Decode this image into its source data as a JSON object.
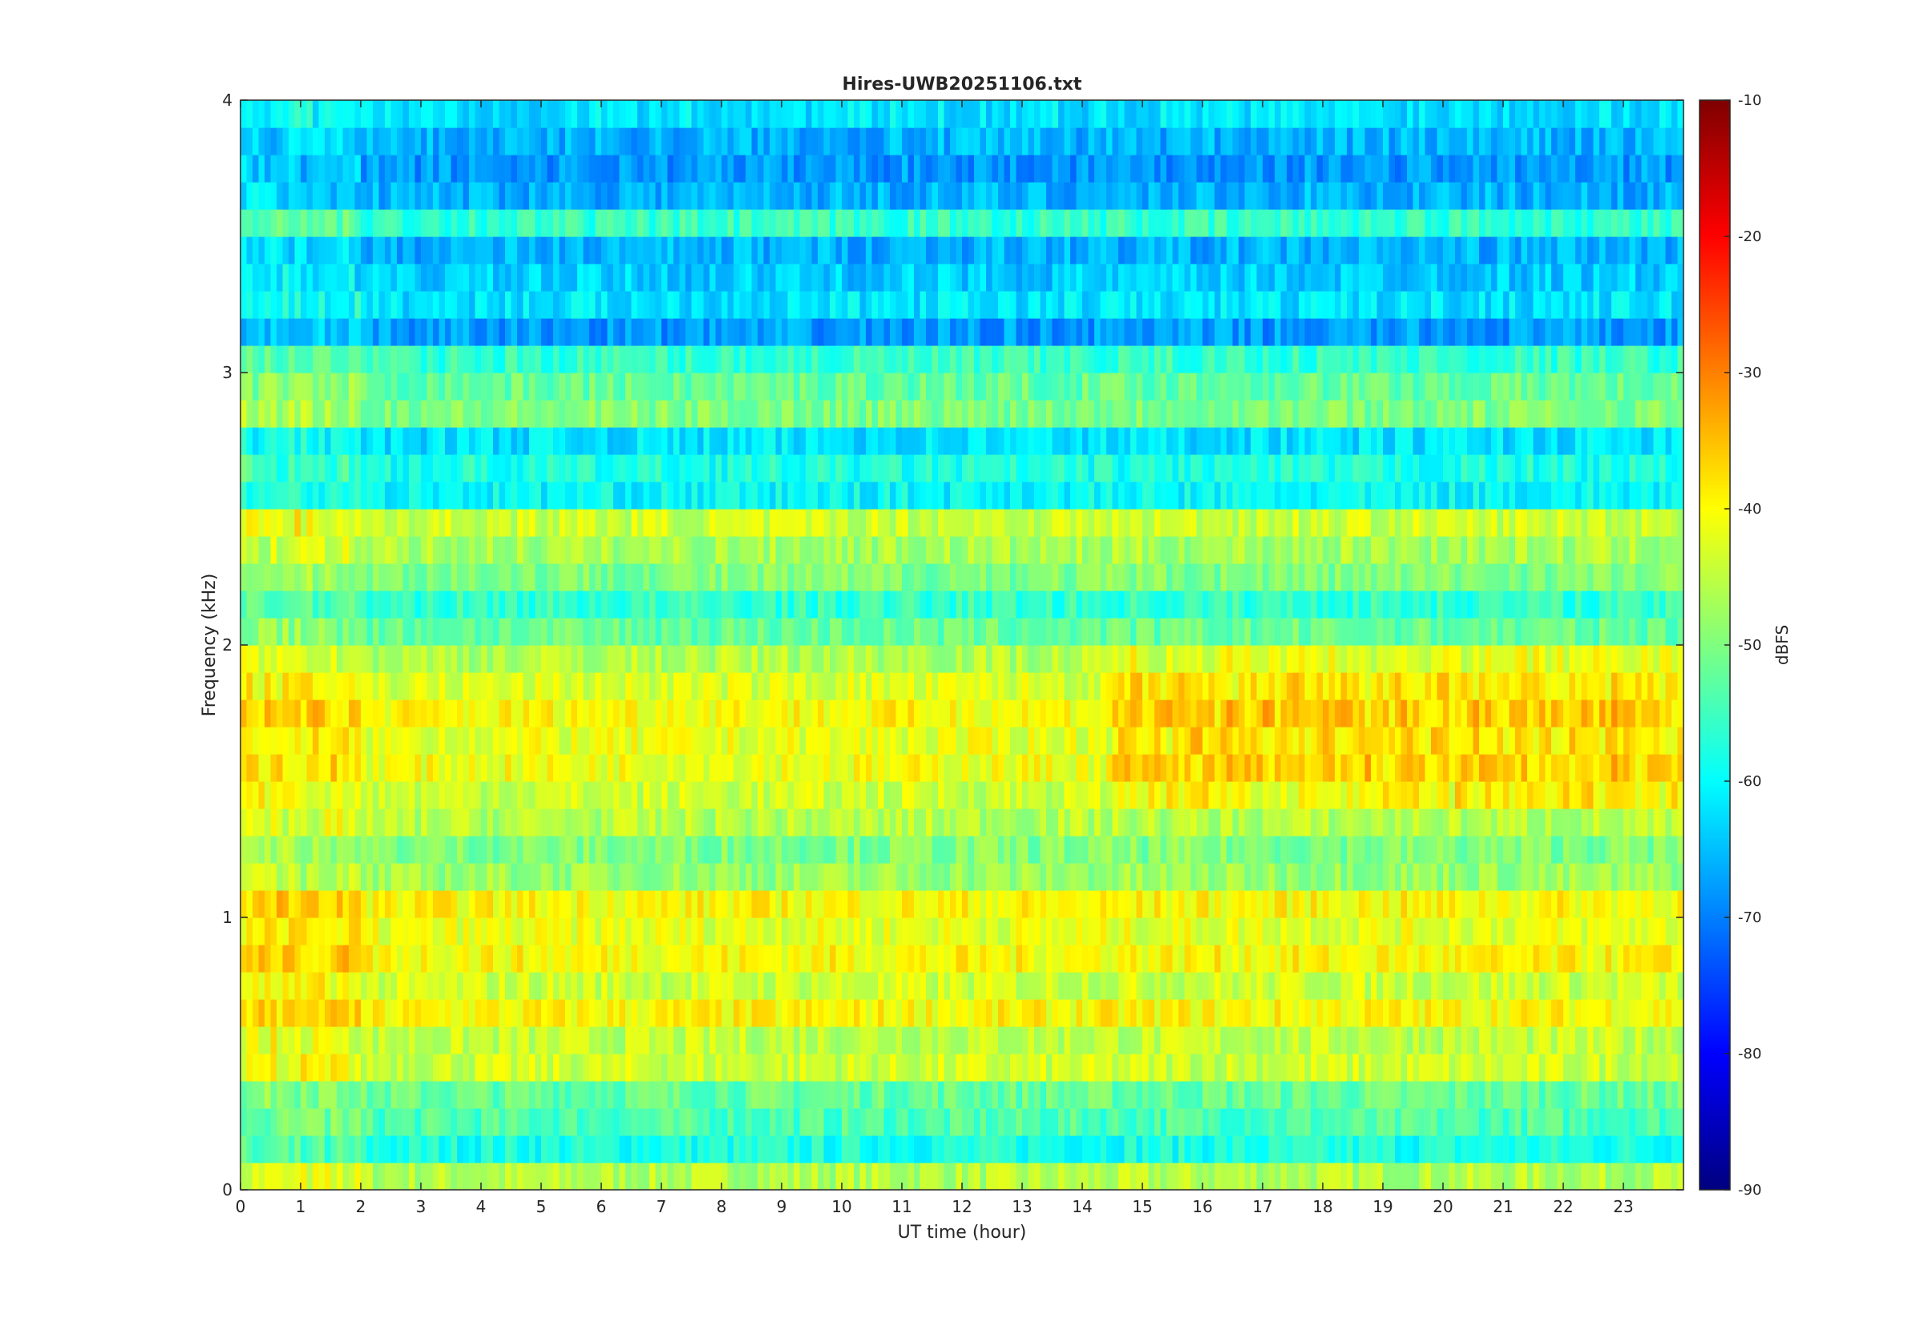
{
  "chart_data": {
    "type": "heatmap",
    "title": "Hires-UWB20251106.txt",
    "xlabel": "UT time (hour)",
    "ylabel": "Frequency (kHz)",
    "colorbar_label": "dBFS",
    "xlim": [
      0,
      24
    ],
    "ylim": [
      0,
      4
    ],
    "clim": [
      -90,
      -10
    ],
    "colormap": "jet",
    "grid": false,
    "legend": "none",
    "x_ticks": [
      0,
      1,
      2,
      3,
      4,
      5,
      6,
      7,
      8,
      9,
      10,
      11,
      12,
      13,
      14,
      15,
      16,
      17,
      18,
      19,
      20,
      21,
      22,
      23
    ],
    "y_ticks": [
      0,
      1,
      2,
      3,
      4
    ],
    "colorbar_ticks": [
      -90,
      -80,
      -70,
      -60,
      -50,
      -40,
      -30,
      -20,
      -10
    ],
    "frequency_bands_khz": [
      0.05,
      0.15,
      0.25,
      0.35,
      0.45,
      0.55,
      0.65,
      0.75,
      0.85,
      0.95,
      1.05,
      1.15,
      1.25,
      1.35,
      1.45,
      1.55,
      1.65,
      1.75,
      1.85,
      1.95,
      2.05,
      2.15,
      2.25,
      2.35,
      2.45,
      2.55,
      2.65,
      2.75,
      2.85,
      2.95,
      3.05,
      3.15,
      3.25,
      3.35,
      3.45,
      3.55,
      3.65,
      3.75,
      3.85,
      3.95
    ],
    "band_level_dbfs": [
      -46,
      -58,
      -54,
      -52,
      -44,
      -45,
      -40,
      -44,
      -40,
      -42,
      -40,
      -48,
      -50,
      -46,
      -44,
      -41,
      -42,
      -40,
      -43,
      -46,
      -52,
      -56,
      -50,
      -47,
      -44,
      -60,
      -58,
      -62,
      -50,
      -52,
      -56,
      -68,
      -62,
      -64,
      -66,
      -56,
      -66,
      -68,
      -66,
      -62
    ],
    "time_modulation": [
      {
        "t_start": 0,
        "t_end": 2,
        "delta_dbfs": 3
      },
      {
        "t_start": 14.5,
        "t_end": 24,
        "delta_dbfs": 4,
        "f_min": 1.4,
        "f_max": 2.0
      }
    ]
  }
}
